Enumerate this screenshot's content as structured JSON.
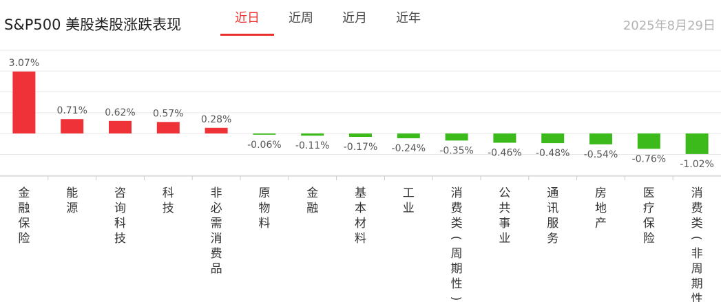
{
  "header": {
    "title": "S&P500 美股类股涨跌表现",
    "tabs": [
      {
        "label": "近日",
        "active": true
      },
      {
        "label": "近周",
        "active": false
      },
      {
        "label": "近月",
        "active": false
      },
      {
        "label": "近年",
        "active": false
      }
    ],
    "date": "2025年8月29日"
  },
  "colors": {
    "up": "#ef3237",
    "down": "#3cba1c",
    "accent": "#e8302f"
  },
  "chart_data": {
    "type": "bar",
    "title": "",
    "xlabel": "",
    "ylabel": "",
    "unit": "%",
    "grid": true,
    "categories": [
      "金融保险",
      "能源",
      "咨询科技",
      "科技",
      "非必需消费品",
      "原物料",
      "金融",
      "基本材料",
      "工业",
      "消费类(周期性)",
      "公共事业",
      "通讯服务",
      "房地产",
      "医疗保险",
      "消费类(非周期性)"
    ],
    "values": [
      3.07,
      0.71,
      0.62,
      0.57,
      0.28,
      -0.06,
      -0.11,
      -0.17,
      -0.24,
      -0.35,
      -0.46,
      -0.48,
      -0.54,
      -0.76,
      -1.02
    ],
    "labels": [
      "3.07%",
      "0.71%",
      "0.62%",
      "0.57%",
      "0.28%",
      "-0.06%",
      "-0.11%",
      "-0.17%",
      "-0.24%",
      "-0.35%",
      "-0.46%",
      "-0.48%",
      "-0.54%",
      "-0.76%",
      "-1.02%"
    ]
  }
}
